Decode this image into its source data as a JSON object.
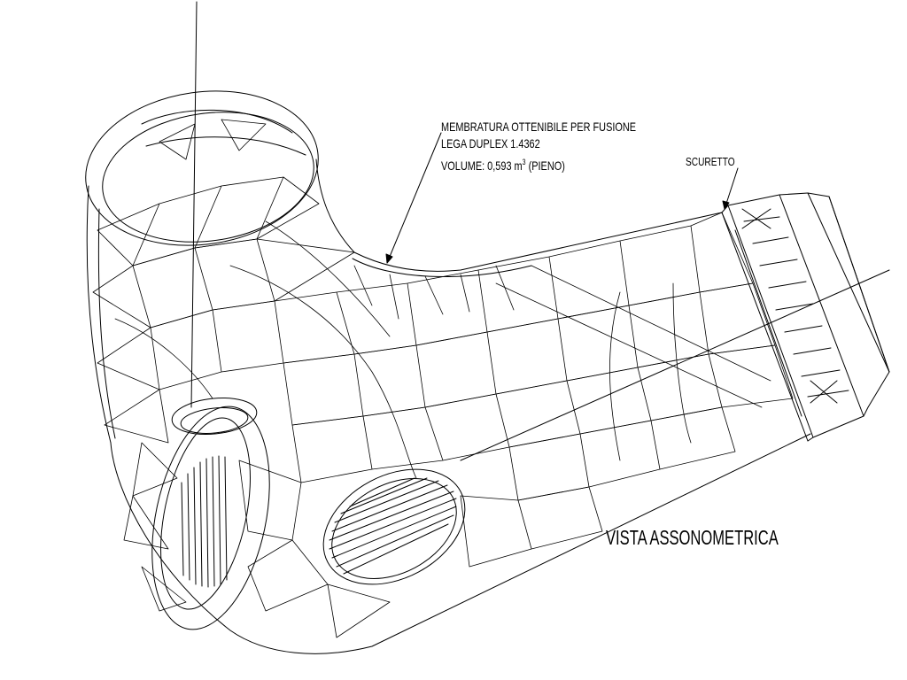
{
  "annotations": {
    "membrane_line1": "MEMBRATURA OTTENIBILE PER FUSIONE",
    "membrane_line2": "LEGA DUPLEX 1.4362",
    "volume_prefix": "VOLUME: 0,593 m",
    "volume_exponent": "3",
    "volume_suffix": " (PIENO)",
    "scuretto": "SCURETTO"
  },
  "view_title": "VISTA ASSONOMETRICA",
  "colors": {
    "line": "#000000",
    "background": "#ffffff"
  }
}
